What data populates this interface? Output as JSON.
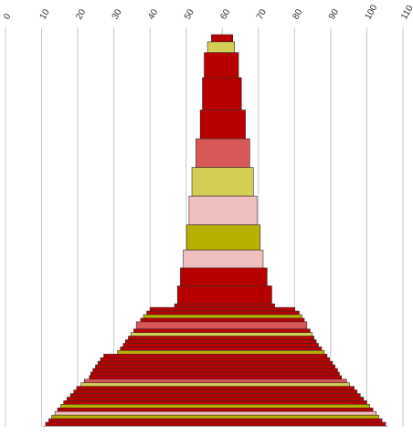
{
  "chart_data": {
    "type": "bar",
    "orientation": "horizontal-centered",
    "x_axis": {
      "min": 0,
      "max": 110,
      "ticks": [
        0,
        10,
        20,
        30,
        40,
        50,
        60,
        70,
        80,
        90,
        100,
        110
      ],
      "tick_labels": [
        "0",
        "10",
        "20",
        "30",
        "40",
        "50",
        "60",
        "70",
        "80",
        "90",
        "100",
        "110"
      ],
      "position": "top",
      "label_rotation": -60,
      "grid": true
    },
    "center": 60,
    "unit_heights": true,
    "palette": {
      "darkred": "#b80000",
      "red": "#d85858",
      "olive": "#b8b000",
      "yellow": "#d3cf55",
      "pink": "#f0c0c0"
    },
    "bars": [
      {
        "left": 57.0,
        "right": 62.9,
        "fill": "darkred",
        "h": 2
      },
      {
        "left": 55.9,
        "right": 63.4,
        "fill": "yellow",
        "h": 3
      },
      {
        "left": 55.0,
        "right": 64.5,
        "fill": "darkred",
        "h": 7
      },
      {
        "left": 54.5,
        "right": 65.3,
        "fill": "darkred",
        "h": 9
      },
      {
        "left": 53.9,
        "right": 66.4,
        "fill": "darkred",
        "h": 8
      },
      {
        "left": 52.7,
        "right": 67.6,
        "fill": "red",
        "h": 8
      },
      {
        "left": 51.6,
        "right": 68.6,
        "fill": "yellow",
        "h": 8
      },
      {
        "left": 50.8,
        "right": 69.6,
        "fill": "pink",
        "h": 8
      },
      {
        "left": 50.1,
        "right": 70.5,
        "fill": "olive",
        "h": 7
      },
      {
        "left": 49.2,
        "right": 71.3,
        "fill": "pink",
        "h": 5
      },
      {
        "left": 48.4,
        "right": 72.4,
        "fill": "darkred",
        "h": 5
      },
      {
        "left": 47.6,
        "right": 73.7,
        "fill": "darkred",
        "h": 5
      },
      {
        "left": 46.8,
        "right": 74.5,
        "fill": "darkred",
        "h": 1
      },
      {
        "left": 40.0,
        "right": 80.1,
        "fill": "darkred",
        "h": 1
      },
      {
        "left": 39.1,
        "right": 81.3,
        "fill": "darkred",
        "h": 1
      },
      {
        "left": 38.2,
        "right": 82.0,
        "fill": "olive",
        "h": 1
      },
      {
        "left": 37.4,
        "right": 82.7,
        "fill": "darkred",
        "h": 1
      },
      {
        "left": 36.2,
        "right": 83.4,
        "fill": "red",
        "h": 2
      },
      {
        "left": 35.5,
        "right": 84.3,
        "fill": "darkred",
        "h": 1
      },
      {
        "left": 34.7,
        "right": 84.9,
        "fill": "yellow",
        "h": 1
      },
      {
        "left": 34.0,
        "right": 85.4,
        "fill": "darkred",
        "h": 1
      },
      {
        "left": 33.2,
        "right": 86.0,
        "fill": "darkred",
        "h": 1
      },
      {
        "left": 32.6,
        "right": 86.6,
        "fill": "darkred",
        "h": 1
      },
      {
        "left": 31.8,
        "right": 87.5,
        "fill": "darkred",
        "h": 1
      },
      {
        "left": 31.0,
        "right": 88.2,
        "fill": "olive",
        "h": 1
      },
      {
        "left": 27.2,
        "right": 89.0,
        "fill": "darkred",
        "h": 1
      },
      {
        "left": 26.3,
        "right": 89.7,
        "fill": "darkred",
        "h": 1
      },
      {
        "left": 25.6,
        "right": 90.5,
        "fill": "darkred",
        "h": 1
      },
      {
        "left": 24.9,
        "right": 91.2,
        "fill": "darkred",
        "h": 1
      },
      {
        "left": 24.2,
        "right": 91.9,
        "fill": "darkred",
        "h": 1
      },
      {
        "left": 23.6,
        "right": 92.4,
        "fill": "darkred",
        "h": 1
      },
      {
        "left": 23.2,
        "right": 93.0,
        "fill": "darkred",
        "h": 1
      },
      {
        "left": 21.8,
        "right": 94.4,
        "fill": "red",
        "h": 1
      },
      {
        "left": 20.9,
        "right": 95.2,
        "fill": "yellow",
        "h": 1
      },
      {
        "left": 19.7,
        "right": 96.5,
        "fill": "darkred",
        "h": 1
      },
      {
        "left": 18.9,
        "right": 97.3,
        "fill": "darkred",
        "h": 1
      },
      {
        "left": 18.0,
        "right": 98.2,
        "fill": "darkred",
        "h": 1
      },
      {
        "left": 17.0,
        "right": 99.1,
        "fill": "darkred",
        "h": 1
      },
      {
        "left": 16.1,
        "right": 100.0,
        "fill": "darkred",
        "h": 1
      },
      {
        "left": 15.3,
        "right": 100.8,
        "fill": "olive",
        "h": 1
      },
      {
        "left": 14.4,
        "right": 101.7,
        "fill": "darkred",
        "h": 1
      },
      {
        "left": 13.7,
        "right": 102.6,
        "fill": "pink",
        "h": 1
      },
      {
        "left": 12.8,
        "right": 103.3,
        "fill": "olive",
        "h": 1
      },
      {
        "left": 12.0,
        "right": 104.2,
        "fill": "darkred",
        "h": 1
      },
      {
        "left": 11.1,
        "right": 105.2,
        "fill": "darkred",
        "h": 1
      }
    ]
  }
}
